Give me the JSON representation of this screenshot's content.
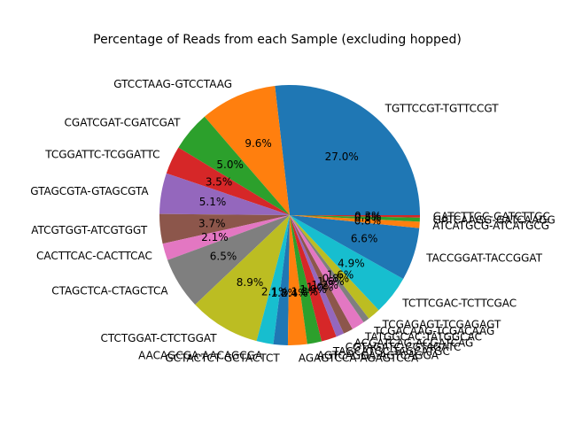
{
  "chart_data": {
    "type": "pie",
    "title": "Percentage of Reads from each Sample (excluding hopped)",
    "startangle": 0,
    "counterclockwise": true,
    "slices": [
      {
        "label": "TGTTCCGT-TGTTCCGT",
        "value": 27.0,
        "pct": "27.0%",
        "color": "#1f77b4"
      },
      {
        "label": "GTCCTAAG-GTCCTAAG",
        "value": 9.6,
        "pct": "9.6%",
        "color": "#ff7f0e"
      },
      {
        "label": "CGATCGAT-CGATCGAT",
        "value": 5.0,
        "pct": "5.0%",
        "color": "#2ca02c"
      },
      {
        "label": "TCGGATTC-TCGGATTC",
        "value": 3.5,
        "pct": "3.5%",
        "color": "#d62728"
      },
      {
        "label": "GTAGCGTA-GTAGCGTA",
        "value": 5.1,
        "pct": "5.1%",
        "color": "#9467bd"
      },
      {
        "label": "ATCGTGGT-ATCGTGGT",
        "value": 3.7,
        "pct": "3.7%",
        "color": "#8c564b"
      },
      {
        "label": "CACTTCAC-CACTTCAC",
        "value": 2.1,
        "pct": "2.1%",
        "color": "#e377c2"
      },
      {
        "label": "CTAGCTCA-CTAGCTCA",
        "value": 6.5,
        "pct": "6.5%",
        "color": "#7f7f7f"
      },
      {
        "label": "CTCTGGAT-CTCTGGAT",
        "value": 8.9,
        "pct": "8.9%",
        "color": "#bcbd22"
      },
      {
        "label": "AACAGCGA-AACAGCGA",
        "value": 2.1,
        "pct": "2.1%",
        "color": "#17becf"
      },
      {
        "label": "GCTACTCT-GCTACTCT",
        "value": 1.8,
        "pct": "1.8%",
        "color": "#1f77b4"
      },
      {
        "label": "AGAGTCCA-AGAGTCCA",
        "value": 2.4,
        "pct": "2.4%",
        "color": "#ff7f0e"
      },
      {
        "label": "AGTCAGGA-AGTCAGGA",
        "value": 1.8,
        "pct": "1.8%",
        "color": "#2ca02c"
      },
      {
        "label": "TAGCATGC-TAGCATGC",
        "value": 1.9,
        "pct": "1.9%",
        "color": "#d62728"
      },
      {
        "label": "CGTAGATC-CGTAGATC",
        "value": 1.0,
        "pct": "1.0%",
        "color": "#9467bd"
      },
      {
        "label": "ACGATCAG-ACGATCAG",
        "value": 1.2,
        "pct": "1.2%",
        "color": "#8c564b"
      },
      {
        "label": "TATGGCAC-TATGGCAC",
        "value": 1.6,
        "pct": "1.6%",
        "color": "#e377c2"
      },
      {
        "label": "TCGACAAG-TCGACAAG",
        "value": 0.8,
        "pct": "0.8%",
        "color": "#7f7f7f"
      },
      {
        "label": "TCGAGAGT-TCGAGAGT",
        "value": 1.6,
        "pct": "1.6%",
        "color": "#bcbd22"
      },
      {
        "label": "TCTTCGAC-TCTTCGAC",
        "value": 4.9,
        "pct": "4.9%",
        "color": "#17becf"
      },
      {
        "label": "TACCGGAT-TACCGGAT",
        "value": 6.6,
        "pct": "6.6%",
        "color": "#1f77b4"
      },
      {
        "label": "ATCATGCG-ATCATGCG",
        "value": 0.8,
        "pct": "0.8%",
        "color": "#ff7f0e"
      },
      {
        "label": "GATCAAGG-GATCAAGG",
        "value": 0.5,
        "pct": "0.5%",
        "color": "#2ca02c"
      },
      {
        "label": "GATCTTGC-GATCTTGC",
        "value": 0.3,
        "pct": "0.3%",
        "color": "#d62728"
      }
    ]
  }
}
